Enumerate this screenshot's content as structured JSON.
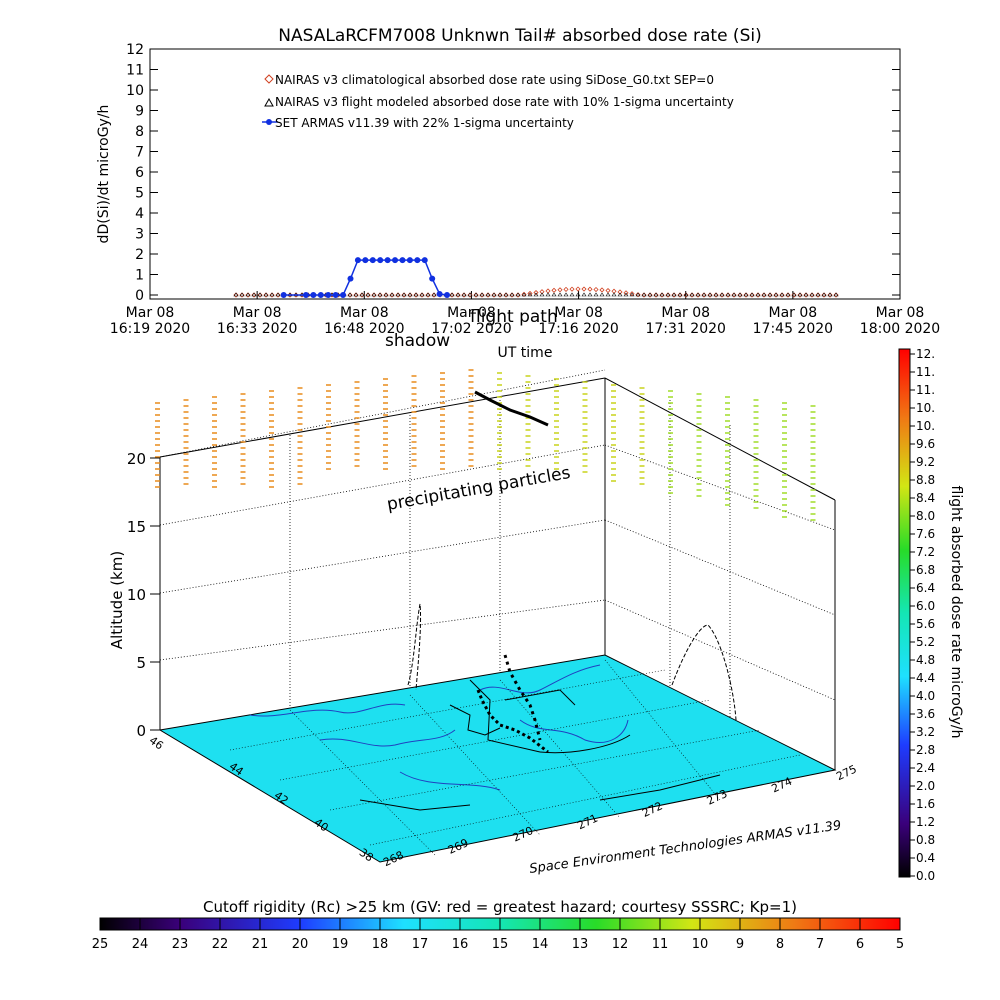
{
  "chart_data": [
    {
      "type": "line",
      "title": "NASALaRCFM7008  Unknwn Tail#  absorbed dose rate (Si)",
      "ylabel": "dD(Si)/dt microGy/h",
      "xlabel": "UT time",
      "ylim": [
        0,
        12
      ],
      "yticks": [
        "0",
        "1",
        "2",
        "3",
        "4",
        "5",
        "6",
        "7",
        "8",
        "9",
        "10",
        "11",
        "12"
      ],
      "xticks": [
        {
          "line1": "Mar 08",
          "line2": "16:19 2020"
        },
        {
          "line1": "Mar 08",
          "line2": "16:33 2020"
        },
        {
          "line1": "Mar 08",
          "line2": "16:48 2020"
        },
        {
          "line1": "Mar 08",
          "line2": "17:02 2020"
        },
        {
          "line1": "Mar 08",
          "line2": "17:16 2020"
        },
        {
          "line1": "Mar 08",
          "line2": "17:31 2020"
        },
        {
          "line1": "Mar 08",
          "line2": "17:45 2020"
        },
        {
          "line1": "Mar 08",
          "line2": "18:00 2020"
        }
      ],
      "legend": [
        {
          "label": "NAIRAS v3 climatological absorbed dose rate using SiDose_G0.txt SEP=0",
          "marker": "diamond",
          "color": "#d04020"
        },
        {
          "label": "NAIRAS v3 flight modeled absorbed dose rate with 10% 1-sigma uncertainty",
          "marker": "triangle",
          "color": "#000000"
        },
        {
          "label": "SET ARMAS v11.39 with 22% 1-sigma uncertainty",
          "marker": "circle",
          "color": "#1030e0"
        }
      ],
      "series": [
        {
          "name": "SET ARMAS v11.39 with 22% 1-sigma uncertainty",
          "color": "#1030e0",
          "x": [
            "16:37",
            "16:40",
            "16:41",
            "16:42",
            "16:43",
            "16:44",
            "16:45",
            "16:46",
            "16:47",
            "16:48",
            "16:49",
            "16:50",
            "16:51",
            "16:52",
            "16:53",
            "16:54",
            "16:55",
            "16:56",
            "16:57",
            "16:58",
            "16:59"
          ],
          "y": [
            0,
            0,
            0,
            0,
            0,
            0,
            0,
            0.8,
            1.7,
            1.7,
            1.7,
            1.7,
            1.7,
            1.7,
            1.7,
            1.7,
            1.7,
            1.7,
            0.8,
            0.05,
            0
          ]
        }
      ],
      "annotations": [
        "shadow",
        "flight path"
      ]
    },
    {
      "type": "scatter",
      "ylabel": "Altitude (km)",
      "zticks": [
        "0",
        "5",
        "10",
        "15",
        "20"
      ],
      "lat_ticks": [
        "38",
        "40",
        "42",
        "44",
        "46"
      ],
      "lon_ticks": [
        "268",
        "269",
        "270",
        "271",
        "272",
        "273",
        "274",
        "275"
      ],
      "annotation": "precipitating particles",
      "credit": "Space Environment Technologies ARMAS v11.39",
      "colorbar_label": "flight absorbed dose rate microGy/h",
      "colorbar_ticks": [
        "0.0",
        "0.4",
        "0.8",
        "1.2",
        "1.6",
        "2.0",
        "2.4",
        "2.8",
        "3.2",
        "3.6",
        "4.0",
        "4.4",
        "4.8",
        "5.2",
        "5.6",
        "6.0",
        "6.4",
        "6.8",
        "7.2",
        "7.6",
        "8.0",
        "8.4",
        "8.8",
        "9.2",
        "9.6",
        "10.",
        "10.",
        "11.",
        "11.",
        "12."
      ]
    },
    {
      "type": "heatmap",
      "title": "Cutoff rigidity (Rc) >25 km (GV: red = greatest hazard; courtesy SSSRC; Kp=1)",
      "ticks": [
        "25",
        "24",
        "23",
        "22",
        "21",
        "20",
        "19",
        "18",
        "17",
        "16",
        "15",
        "14",
        "13",
        "12",
        "11",
        "10",
        "9",
        "8",
        "7",
        "6",
        "5"
      ]
    }
  ]
}
